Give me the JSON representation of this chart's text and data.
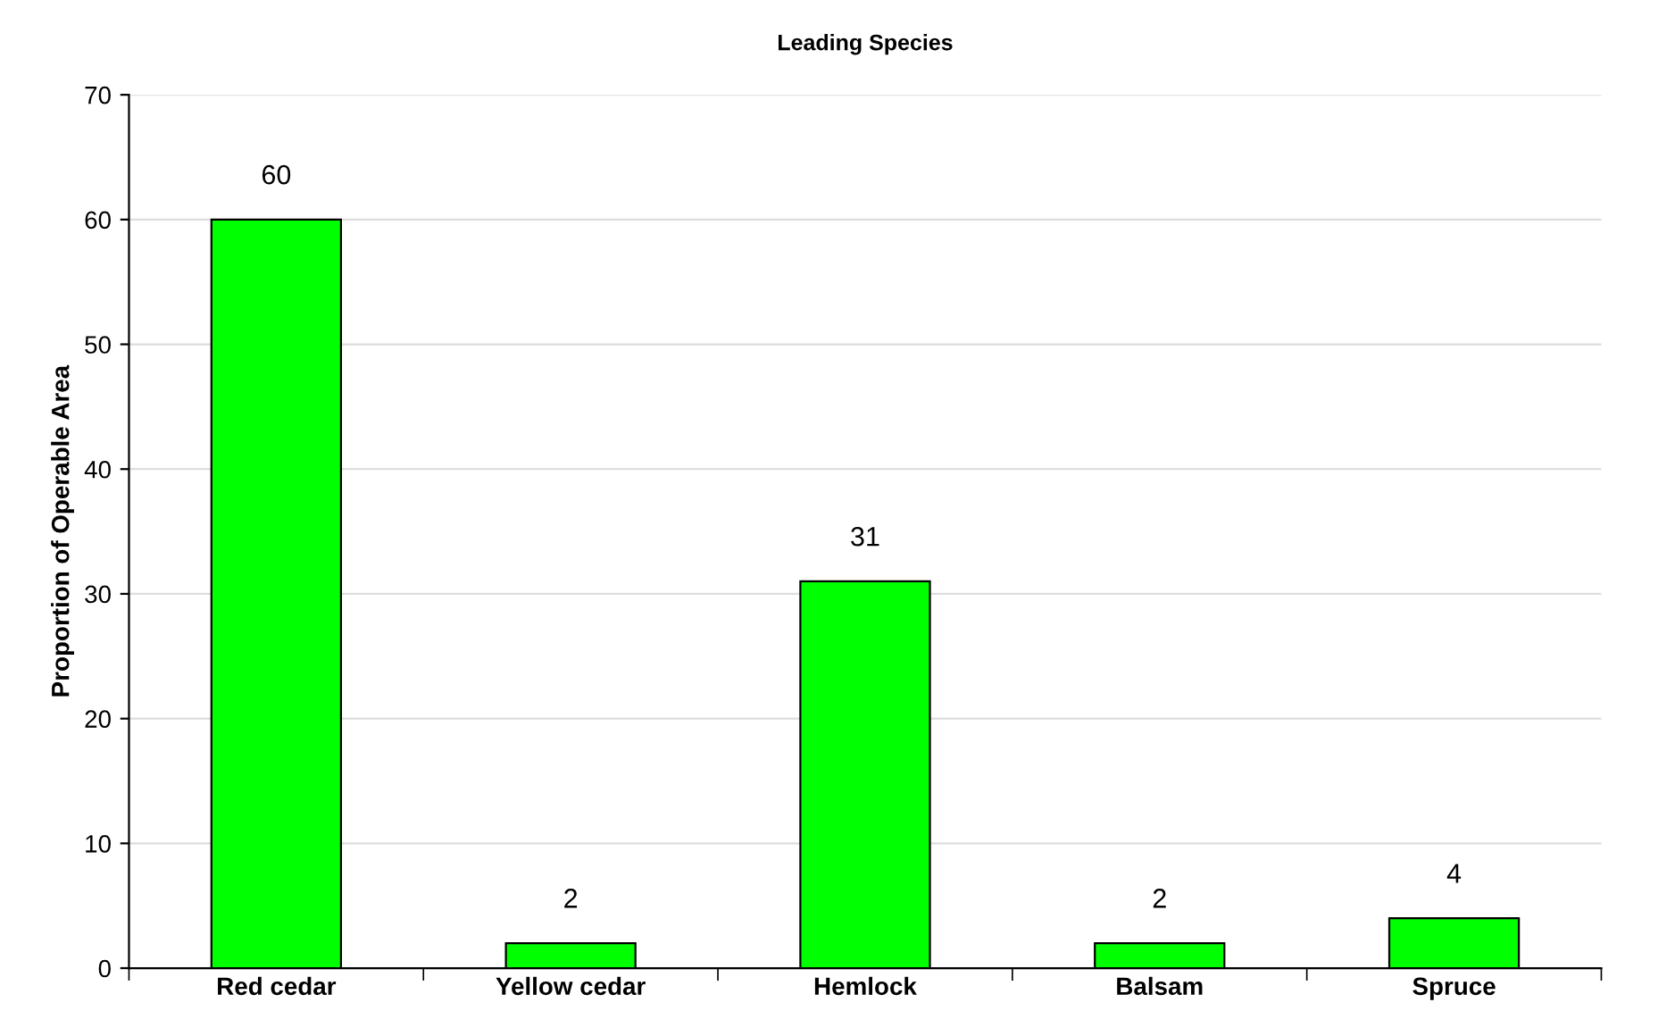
{
  "chart_data": {
    "type": "bar",
    "title": "Leading Species",
    "ylabel": "Proportion of Operable Area",
    "categories": [
      "Red cedar",
      "Yellow cedar",
      "Hemlock",
      "Balsam",
      "Spruce"
    ],
    "values": [
      60,
      2,
      31,
      2,
      4
    ],
    "color": "#00ff00",
    "ylim": [
      0,
      70
    ],
    "yticks": [
      0,
      10,
      20,
      30,
      40,
      50,
      60,
      70
    ],
    "grid": "y",
    "data_labels": true
  }
}
